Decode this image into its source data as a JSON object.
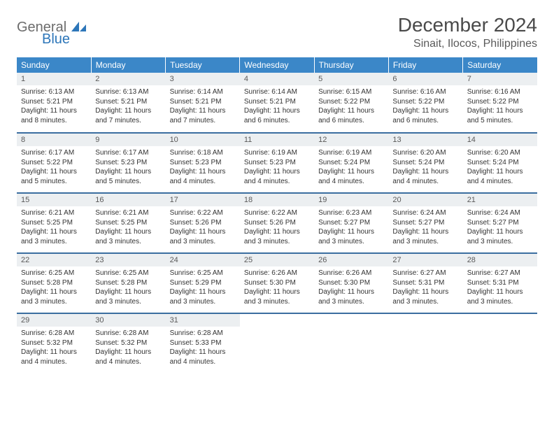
{
  "logo": {
    "text1": "General",
    "text2": "Blue"
  },
  "title": "December 2024",
  "location": "Sinait, Ilocos, Philippines",
  "colors": {
    "headerBg": "#3b87c8",
    "headerText": "#ffffff",
    "dayBarBg": "#eceff1",
    "rowBorder": "#3b6ea0",
    "logoGray": "#6c6c6c",
    "logoBlue": "#2d76b9"
  },
  "weekdays": [
    "Sunday",
    "Monday",
    "Tuesday",
    "Wednesday",
    "Thursday",
    "Friday",
    "Saturday"
  ],
  "weeks": [
    [
      {
        "n": "1",
        "sr": "6:13 AM",
        "ss": "5:21 PM",
        "dl": "11 hours and 8 minutes."
      },
      {
        "n": "2",
        "sr": "6:13 AM",
        "ss": "5:21 PM",
        "dl": "11 hours and 7 minutes."
      },
      {
        "n": "3",
        "sr": "6:14 AM",
        "ss": "5:21 PM",
        "dl": "11 hours and 7 minutes."
      },
      {
        "n": "4",
        "sr": "6:14 AM",
        "ss": "5:21 PM",
        "dl": "11 hours and 6 minutes."
      },
      {
        "n": "5",
        "sr": "6:15 AM",
        "ss": "5:22 PM",
        "dl": "11 hours and 6 minutes."
      },
      {
        "n": "6",
        "sr": "6:16 AM",
        "ss": "5:22 PM",
        "dl": "11 hours and 6 minutes."
      },
      {
        "n": "7",
        "sr": "6:16 AM",
        "ss": "5:22 PM",
        "dl": "11 hours and 5 minutes."
      }
    ],
    [
      {
        "n": "8",
        "sr": "6:17 AM",
        "ss": "5:22 PM",
        "dl": "11 hours and 5 minutes."
      },
      {
        "n": "9",
        "sr": "6:17 AM",
        "ss": "5:23 PM",
        "dl": "11 hours and 5 minutes."
      },
      {
        "n": "10",
        "sr": "6:18 AM",
        "ss": "5:23 PM",
        "dl": "11 hours and 4 minutes."
      },
      {
        "n": "11",
        "sr": "6:19 AM",
        "ss": "5:23 PM",
        "dl": "11 hours and 4 minutes."
      },
      {
        "n": "12",
        "sr": "6:19 AM",
        "ss": "5:24 PM",
        "dl": "11 hours and 4 minutes."
      },
      {
        "n": "13",
        "sr": "6:20 AM",
        "ss": "5:24 PM",
        "dl": "11 hours and 4 minutes."
      },
      {
        "n": "14",
        "sr": "6:20 AM",
        "ss": "5:24 PM",
        "dl": "11 hours and 4 minutes."
      }
    ],
    [
      {
        "n": "15",
        "sr": "6:21 AM",
        "ss": "5:25 PM",
        "dl": "11 hours and 3 minutes."
      },
      {
        "n": "16",
        "sr": "6:21 AM",
        "ss": "5:25 PM",
        "dl": "11 hours and 3 minutes."
      },
      {
        "n": "17",
        "sr": "6:22 AM",
        "ss": "5:26 PM",
        "dl": "11 hours and 3 minutes."
      },
      {
        "n": "18",
        "sr": "6:22 AM",
        "ss": "5:26 PM",
        "dl": "11 hours and 3 minutes."
      },
      {
        "n": "19",
        "sr": "6:23 AM",
        "ss": "5:27 PM",
        "dl": "11 hours and 3 minutes."
      },
      {
        "n": "20",
        "sr": "6:24 AM",
        "ss": "5:27 PM",
        "dl": "11 hours and 3 minutes."
      },
      {
        "n": "21",
        "sr": "6:24 AM",
        "ss": "5:27 PM",
        "dl": "11 hours and 3 minutes."
      }
    ],
    [
      {
        "n": "22",
        "sr": "6:25 AM",
        "ss": "5:28 PM",
        "dl": "11 hours and 3 minutes."
      },
      {
        "n": "23",
        "sr": "6:25 AM",
        "ss": "5:28 PM",
        "dl": "11 hours and 3 minutes."
      },
      {
        "n": "24",
        "sr": "6:25 AM",
        "ss": "5:29 PM",
        "dl": "11 hours and 3 minutes."
      },
      {
        "n": "25",
        "sr": "6:26 AM",
        "ss": "5:30 PM",
        "dl": "11 hours and 3 minutes."
      },
      {
        "n": "26",
        "sr": "6:26 AM",
        "ss": "5:30 PM",
        "dl": "11 hours and 3 minutes."
      },
      {
        "n": "27",
        "sr": "6:27 AM",
        "ss": "5:31 PM",
        "dl": "11 hours and 3 minutes."
      },
      {
        "n": "28",
        "sr": "6:27 AM",
        "ss": "5:31 PM",
        "dl": "11 hours and 3 minutes."
      }
    ],
    [
      {
        "n": "29",
        "sr": "6:28 AM",
        "ss": "5:32 PM",
        "dl": "11 hours and 4 minutes."
      },
      {
        "n": "30",
        "sr": "6:28 AM",
        "ss": "5:32 PM",
        "dl": "11 hours and 4 minutes."
      },
      {
        "n": "31",
        "sr": "6:28 AM",
        "ss": "5:33 PM",
        "dl": "11 hours and 4 minutes."
      },
      null,
      null,
      null,
      null
    ]
  ],
  "labels": {
    "sunrise": "Sunrise:",
    "sunset": "Sunset:",
    "daylight": "Daylight:"
  }
}
